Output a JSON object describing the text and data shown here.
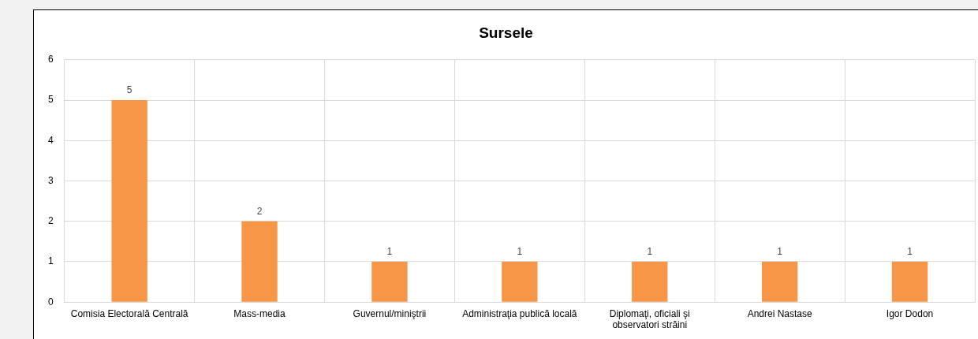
{
  "chart_data": {
    "type": "bar",
    "title": "Sursele",
    "categories": [
      "Comisia Electorală Centrală",
      "Mass-media",
      "Guvernul/miniştrii",
      "Administraţia publică locală",
      "Diplomaţi, oficiali şi observatori străini",
      "Andrei Nastase",
      "Igor Dodon"
    ],
    "values": [
      5,
      2,
      1,
      1,
      1,
      1,
      1
    ],
    "color": "#f79646",
    "ylim": [
      0,
      6
    ],
    "yticks": [
      0,
      1,
      2,
      3,
      4,
      5,
      6
    ],
    "grid": true,
    "data_labels": true
  }
}
